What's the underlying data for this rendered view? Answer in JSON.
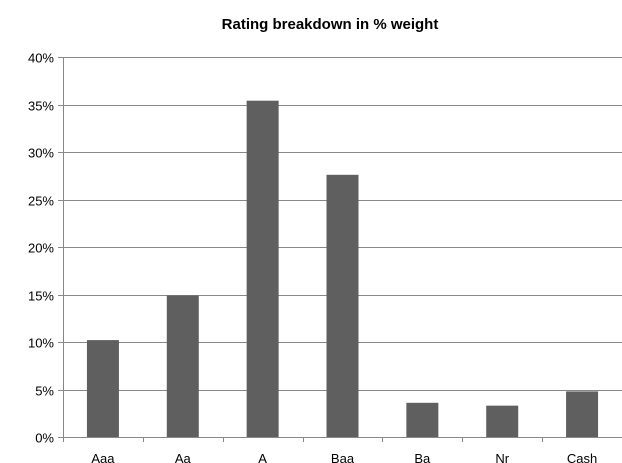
{
  "chart_data": {
    "type": "bar",
    "title": "Rating breakdown in % weight",
    "xlabel": "",
    "ylabel": "",
    "categories": [
      "Aaa",
      "Aa",
      "A",
      "Baa",
      "Ba",
      "Nr",
      "Cash"
    ],
    "values": [
      10.2,
      14.9,
      35.4,
      27.6,
      3.6,
      3.3,
      4.8
    ],
    "ylim": [
      0,
      40
    ],
    "yticks": [
      "0%",
      "5%",
      "10%",
      "15%",
      "20%",
      "25%",
      "30%",
      "35%",
      "40%"
    ],
    "grid": true,
    "legend": "none",
    "bar_color": "#5f5f5f",
    "grid_color": "#888888"
  }
}
